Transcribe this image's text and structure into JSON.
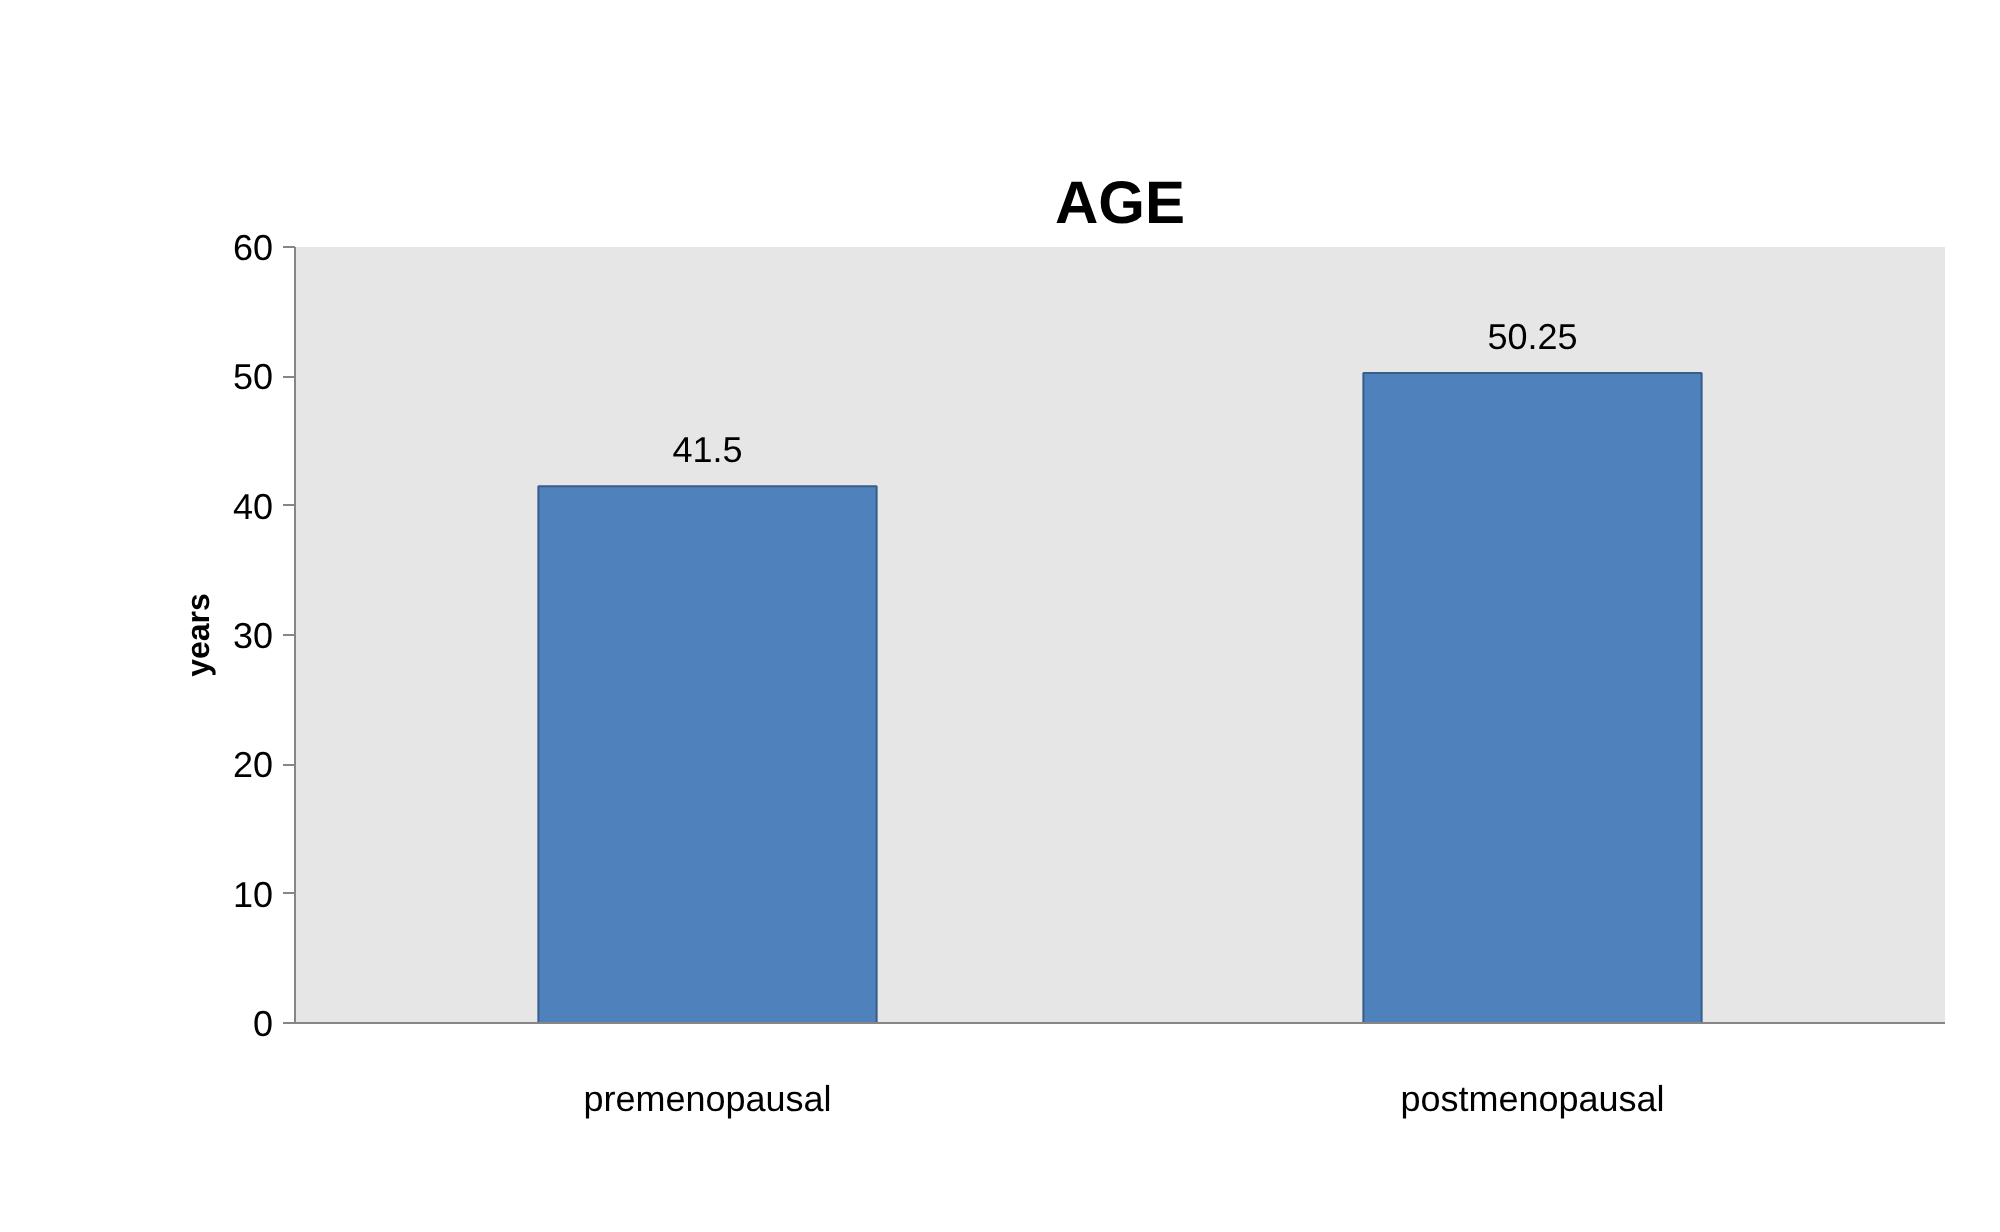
{
  "chart_data": {
    "type": "bar",
    "title": "AGE",
    "ylabel": "years",
    "categories": [
      "premenopausal",
      "postmenopausal"
    ],
    "values": [
      41.5,
      50.25
    ],
    "color": "#4f81bd",
    "ylim": [
      0,
      60
    ],
    "yticks": [
      0,
      10,
      20,
      30,
      40,
      50,
      60
    ],
    "data_labels": true
  }
}
